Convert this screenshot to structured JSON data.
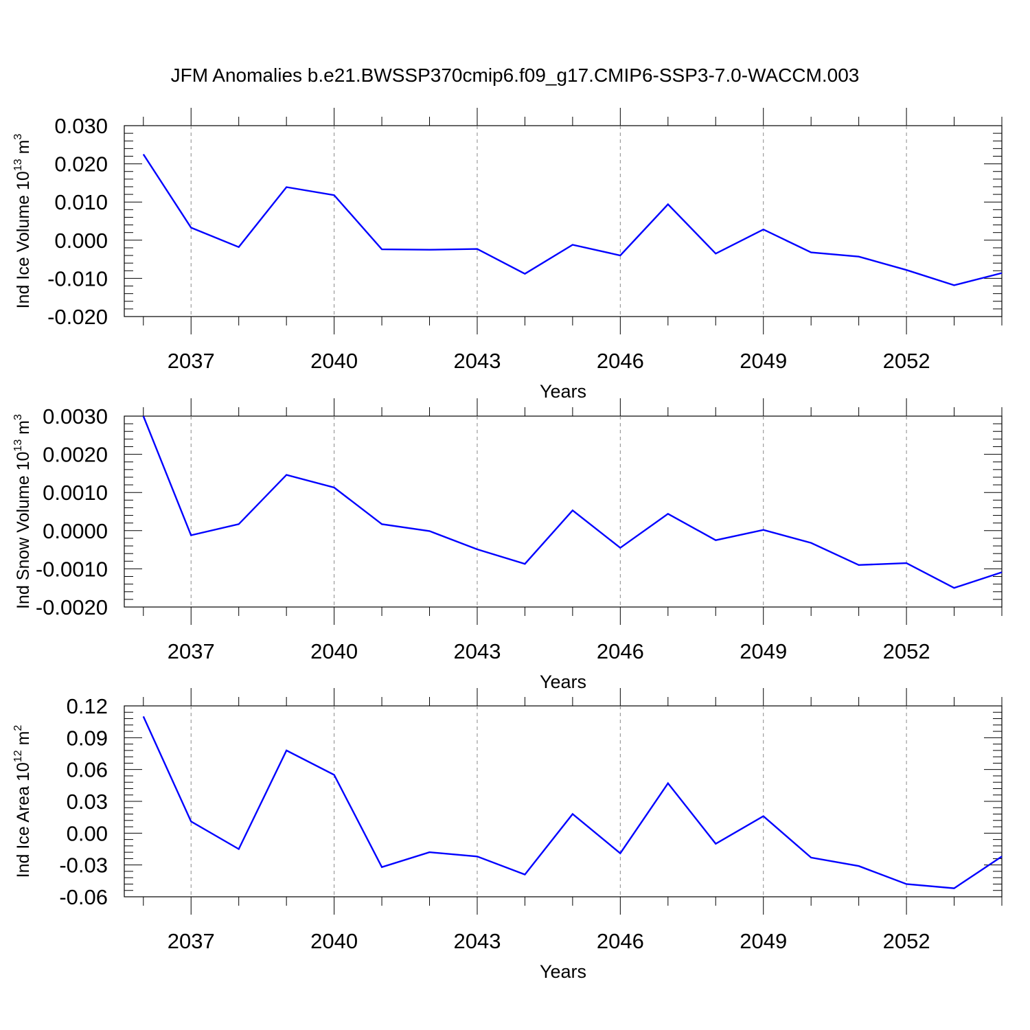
{
  "title": "JFM Anomalies b.e21.BWSSP370cmip6.f09_g17.CMIP6-SSP3-7.0-WACCM.003",
  "chart_data": [
    {
      "type": "line",
      "xlabel": "Years",
      "ylabel": {
        "prefix": "Ind Ice Volume 10",
        "exponent": "13",
        "unit": " m",
        "unit_exponent": "3"
      },
      "x": [
        2036,
        2037,
        2038,
        2039,
        2040,
        2041,
        2042,
        2043,
        2044,
        2045,
        2046,
        2047,
        2048,
        2049,
        2050,
        2051,
        2052,
        2053,
        2054
      ],
      "series": [
        {
          "values": [
            0.0225,
            0.0033,
            -0.0018,
            0.0139,
            0.0118,
            -0.0024,
            -0.0025,
            -0.0023,
            -0.0088,
            -0.0012,
            -0.004,
            0.0094,
            -0.0035,
            0.0028,
            -0.0032,
            -0.0043,
            -0.0078,
            -0.0118,
            -0.0086
          ]
        }
      ],
      "xlim": [
        2035.6,
        2054
      ],
      "ylim": [
        -0.02,
        0.03
      ],
      "y_ticks": [
        "0.030",
        "0.020",
        "0.010",
        "0.000",
        "-0.010",
        "-0.020"
      ],
      "y_tick_values": [
        0.03,
        0.02,
        0.01,
        0.0,
        -0.01,
        -0.02
      ],
      "x_ticks": [
        "2037",
        "2040",
        "2043",
        "2046",
        "2049",
        "2052"
      ],
      "x_tick_values": [
        2037,
        2040,
        2043,
        2046,
        2049,
        2052
      ],
      "line_color": "#0000ff",
      "grid": "dashed vertical at major x ticks"
    },
    {
      "type": "line",
      "xlabel": "Years",
      "ylabel": {
        "prefix": "Ind Snow Volume 10",
        "exponent": "13",
        "unit": " m",
        "unit_exponent": "3"
      },
      "x": [
        2036,
        2037,
        2038,
        2039,
        2040,
        2041,
        2042,
        2043,
        2044,
        2045,
        2046,
        2047,
        2048,
        2049,
        2050,
        2051,
        2052,
        2053,
        2054
      ],
      "series": [
        {
          "values": [
            0.003,
            -0.00012,
            0.00017,
            0.00146,
            0.00113,
            0.00017,
            -1e-05,
            -0.00049,
            -0.00087,
            0.00053,
            -0.00045,
            0.00044,
            -0.00025,
            2e-05,
            -0.00032,
            -0.0009,
            -0.00085,
            -0.0015,
            -0.00109
          ]
        }
      ],
      "xlim": [
        2035.6,
        2054
      ],
      "ylim": [
        -0.002,
        0.003
      ],
      "y_ticks": [
        "0.0030",
        "0.0020",
        "0.0010",
        "0.0000",
        "-0.0010",
        "-0.0020"
      ],
      "y_tick_values": [
        0.003,
        0.002,
        0.001,
        0.0,
        -0.001,
        -0.002
      ],
      "x_ticks": [
        "2037",
        "2040",
        "2043",
        "2046",
        "2049",
        "2052"
      ],
      "x_tick_values": [
        2037,
        2040,
        2043,
        2046,
        2049,
        2052
      ],
      "line_color": "#0000ff",
      "grid": "dashed vertical at major x ticks"
    },
    {
      "type": "line",
      "xlabel": "Years",
      "ylabel": {
        "prefix": "Ind Ice Area 10",
        "exponent": "12",
        "unit": " m",
        "unit_exponent": "2"
      },
      "x": [
        2036,
        2037,
        2038,
        2039,
        2040,
        2041,
        2042,
        2043,
        2044,
        2045,
        2046,
        2047,
        2048,
        2049,
        2050,
        2051,
        2052,
        2053,
        2054
      ],
      "series": [
        {
          "values": [
            0.11,
            0.011,
            -0.015,
            0.078,
            0.055,
            -0.032,
            -0.018,
            -0.022,
            -0.039,
            0.018,
            -0.019,
            0.047,
            -0.01,
            0.016,
            -0.023,
            -0.031,
            -0.048,
            -0.052,
            -0.022
          ]
        }
      ],
      "xlim": [
        2035.6,
        2054
      ],
      "ylim": [
        -0.06,
        0.12
      ],
      "y_ticks": [
        "0.12",
        "0.09",
        "0.06",
        "0.03",
        "0.00",
        "-0.03",
        "-0.06"
      ],
      "y_tick_values": [
        0.12,
        0.09,
        0.06,
        0.03,
        0.0,
        -0.03,
        -0.06
      ],
      "x_ticks": [
        "2037",
        "2040",
        "2043",
        "2046",
        "2049",
        "2052"
      ],
      "x_tick_values": [
        2037,
        2040,
        2043,
        2046,
        2049,
        2052
      ],
      "line_color": "#0000ff",
      "grid": "dashed vertical at major x ticks"
    }
  ]
}
